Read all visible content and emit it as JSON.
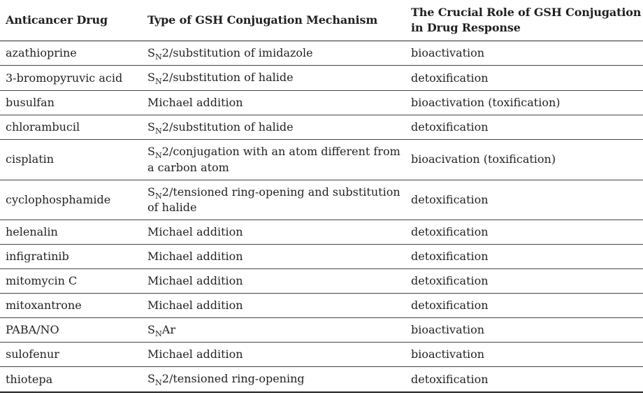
{
  "page": {
    "background_color": "#ffffff",
    "text_color": "#231f20",
    "rule_color": "#454545",
    "heavy_rule_color": "#1d1d1d"
  },
  "table": {
    "columns": [
      {
        "label": "Anticancer Drug"
      },
      {
        "label": "Type of GSH Conjugation Mechanism"
      },
      {
        "label": "The Crucial Role of GSH Conjugation in Drug Response"
      }
    ],
    "rows": [
      {
        "drug": "azathioprine",
        "mechanism": [
          {
            "text": "S"
          },
          {
            "text": "N",
            "sub": true
          },
          {
            "text": "2/substitution of imidazole"
          }
        ],
        "role": "bioactivation"
      },
      {
        "drug": "3-bromopyruvic acid",
        "mechanism": [
          {
            "text": "S"
          },
          {
            "text": "N",
            "sub": true
          },
          {
            "text": "2/substitution of halide"
          }
        ],
        "role": "detoxification"
      },
      {
        "drug": "busulfan",
        "mechanism": [
          {
            "text": "Michael addition"
          }
        ],
        "role": "bioactivation (toxification)"
      },
      {
        "drug": "chlorambucil",
        "mechanism": [
          {
            "text": "S"
          },
          {
            "text": "N",
            "sub": true
          },
          {
            "text": "2/substitution of halide"
          }
        ],
        "role": "detoxification"
      },
      {
        "drug": "cisplatin",
        "mechanism": [
          {
            "text": "S"
          },
          {
            "text": "N",
            "sub": true
          },
          {
            "text": "2/conjugation with an atom different from a carbon atom"
          }
        ],
        "role": "bioacivation (toxification)"
      },
      {
        "drug": "cyclophosphamide",
        "mechanism": [
          {
            "text": "S"
          },
          {
            "text": "N",
            "sub": true
          },
          {
            "text": "2/tensioned ring-opening and substitution of halide"
          }
        ],
        "role": "detoxification"
      },
      {
        "drug": "helenalin",
        "mechanism": [
          {
            "text": "Michael addition"
          }
        ],
        "role": "detoxification"
      },
      {
        "drug": "infigratinib",
        "mechanism": [
          {
            "text": "Michael addition"
          }
        ],
        "role": "detoxification"
      },
      {
        "drug": "mitomycin C",
        "mechanism": [
          {
            "text": "Michael addition"
          }
        ],
        "role": "detoxification"
      },
      {
        "drug": "mitoxantrone",
        "mechanism": [
          {
            "text": "Michael addition"
          }
        ],
        "role": "detoxification"
      },
      {
        "drug": "PABA/NO",
        "mechanism": [
          {
            "text": "S"
          },
          {
            "text": "N",
            "sub": true
          },
          {
            "text": "Ar"
          }
        ],
        "role": "bioactivation"
      },
      {
        "drug": "sulofenur",
        "mechanism": [
          {
            "text": "Michael addition"
          }
        ],
        "role": "bioactivation"
      },
      {
        "drug": "thiotepa",
        "mechanism": [
          {
            "text": "S"
          },
          {
            "text": "N",
            "sub": true
          },
          {
            "text": "2/tensioned ring-opening"
          }
        ],
        "role": "detoxification"
      }
    ]
  }
}
